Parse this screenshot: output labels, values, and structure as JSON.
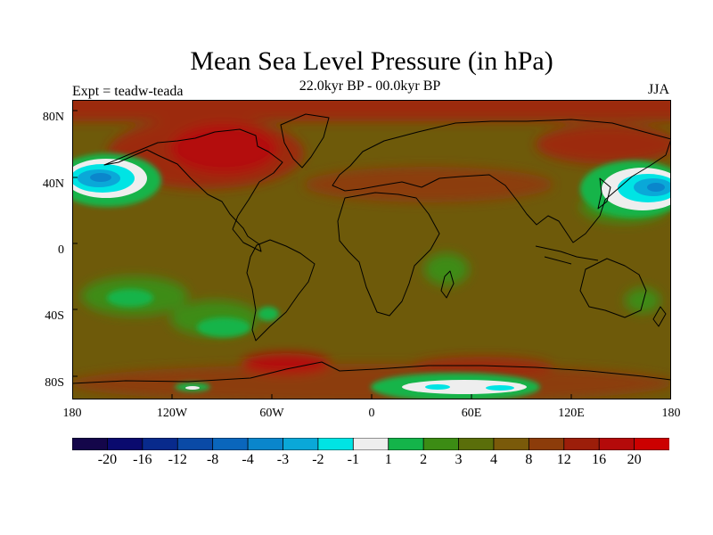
{
  "title": "Mean Sea Level Pressure (in hPa)",
  "subtitle": "22.0kyr BP - 00.0kyr BP",
  "experiment": "Expt = teadw-teada",
  "season": "JJA",
  "lat_labels": [
    "80N",
    "40N",
    "0",
    "40S",
    "80S"
  ],
  "lon_labels": [
    "180",
    "120W",
    "60W",
    "0",
    "60E",
    "120E",
    "180"
  ],
  "colorbar": {
    "labels": [
      "-20",
      "-16",
      "-12",
      "-8",
      "-4",
      "-3",
      "-2",
      "-1",
      "1",
      "2",
      "3",
      "4",
      "8",
      "12",
      "16",
      "20"
    ],
    "colors": [
      "#14064a",
      "#0a0a6e",
      "#082a8c",
      "#0a4aa6",
      "#0a66bc",
      "#0a86cc",
      "#0aa8d8",
      "#00e4e4",
      "#eeeeee",
      "#14b44a",
      "#3c8c14",
      "#5a6e0a",
      "#7a5a0a",
      "#8c3c0a",
      "#9c1e0a",
      "#b40a0a",
      "#cc0000"
    ]
  },
  "colors": {
    "base_field": "#6e5a0a",
    "land_outline": "#000000"
  }
}
